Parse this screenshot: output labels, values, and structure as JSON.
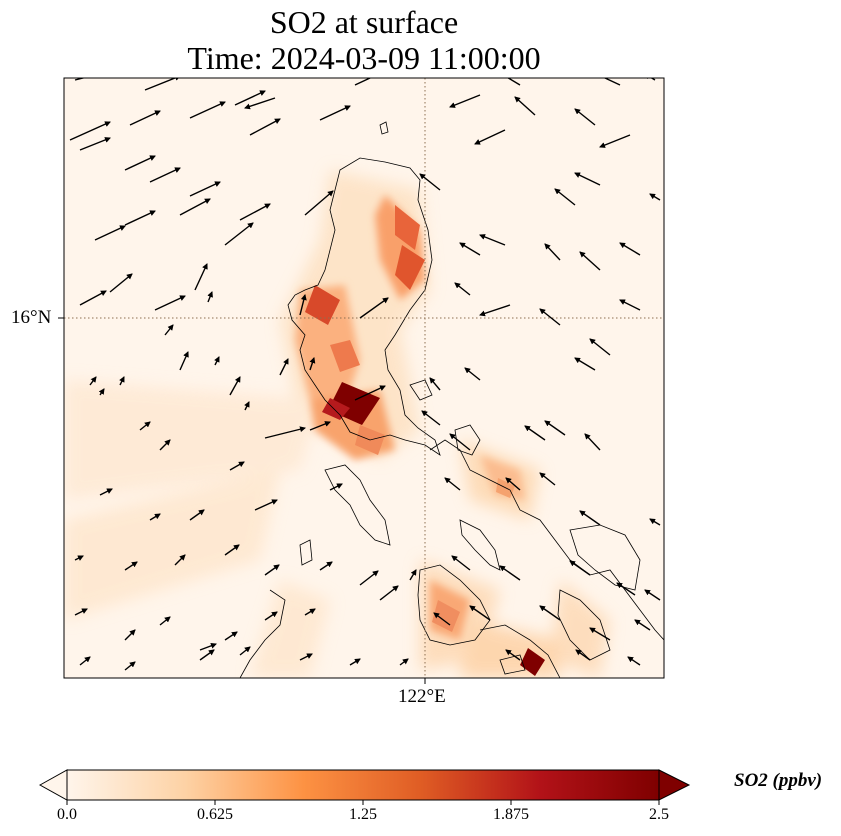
{
  "title": {
    "line1": "SO2 at surface",
    "line2": "Time: 2024-03-09 11:00:00"
  },
  "axes": {
    "lat_label": "16°N",
    "lon_label": "122°E"
  },
  "colorbar": {
    "label": "SO2 (ppbv)",
    "ticks": [
      "0.0",
      "0.625",
      "1.25",
      "1.875",
      "2.5"
    ],
    "colormap": [
      "#fff5eb",
      "#fdd2a5",
      "#fd9243",
      "#df5c24",
      "#b21218",
      "#7f0000"
    ],
    "min": 0.0,
    "max": 2.5,
    "extend": "both"
  },
  "colors": {
    "land_outline": "#000000",
    "gridline": "#8c6e50",
    "background": "#fff5eb",
    "arrow": "#000000"
  },
  "chart_data": {
    "type": "heatmap",
    "title": "SO2 at surface Time: 2024-03-09 11:00:00",
    "variable": "SO2",
    "units": "ppbv",
    "gridlines": {
      "lat": [
        "16°N"
      ],
      "lon": [
        "122°E"
      ]
    },
    "vector_field": "wind",
    "value_range": [
      0.0,
      2.5
    ]
  }
}
